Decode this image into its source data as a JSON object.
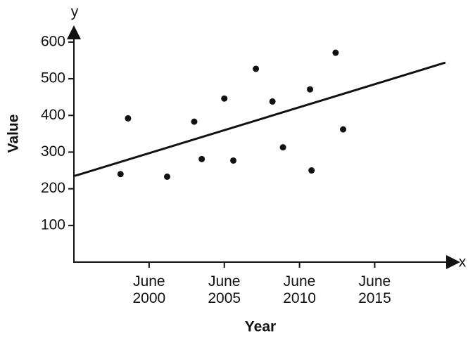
{
  "chart_data": {
    "type": "scatter",
    "x_label": "Year",
    "y_label": "Value",
    "x_symbol": "x",
    "y_symbol": "y",
    "x": [
      1998.6,
      1999.1,
      2001.7,
      2003.5,
      2004.0,
      2005.5,
      2006.1,
      2007.6,
      2008.7,
      2009.4,
      2011.2,
      2011.3,
      2012.9,
      2013.4
    ],
    "values": [
      240,
      392,
      233,
      383,
      281,
      446,
      277,
      527,
      438,
      313,
      471,
      250,
      571,
      362
    ],
    "color": "#111111",
    "trendline": {
      "x": [
        1995.55,
        2020.2
      ],
      "values": [
        235,
        544
      ],
      "color": "#111111"
    },
    "xlim": [
      1995.5,
      2021
    ],
    "ylim": [
      0,
      640
    ],
    "xticks": [
      {
        "value": 2000.5,
        "label": "June 2000"
      },
      {
        "value": 2005.5,
        "label": "June 2005"
      },
      {
        "value": 2010.5,
        "label": "June 2010"
      },
      {
        "value": 2015.5,
        "label": "June 2015"
      }
    ],
    "yticks": [
      100,
      200,
      300,
      400,
      500,
      600
    ],
    "grid": false
  }
}
